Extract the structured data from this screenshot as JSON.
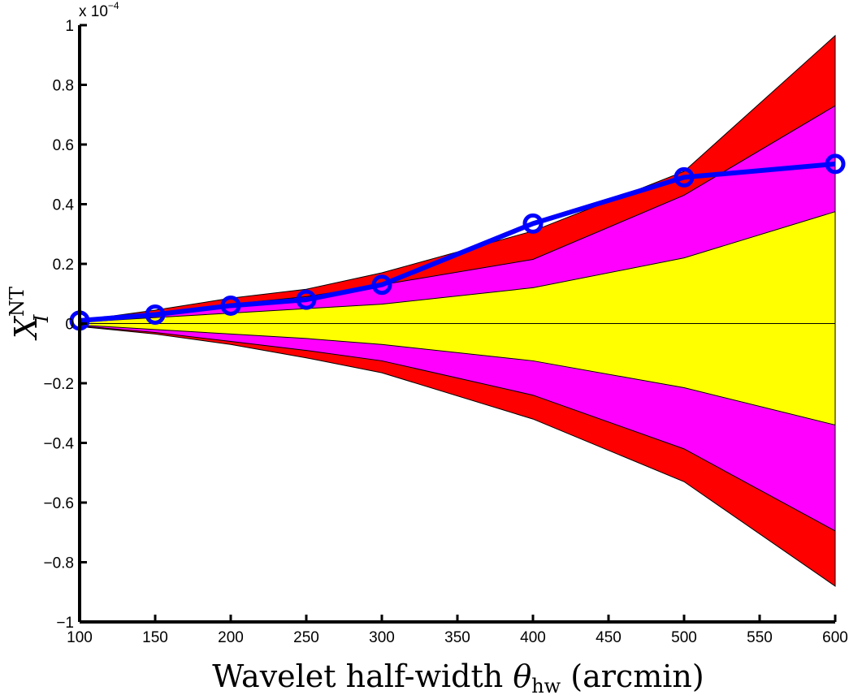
{
  "chart_data": {
    "type": "area",
    "x": [
      100,
      150,
      200,
      250,
      300,
      400,
      500,
      600
    ],
    "bands": [
      {
        "fill": "#ff0000",
        "upper": [
          0.01,
          0.045,
          0.085,
          0.115,
          0.17,
          0.31,
          0.51,
          0.965
        ],
        "lower": [
          -0.01,
          -0.035,
          -0.07,
          -0.115,
          -0.165,
          -0.32,
          -0.53,
          -0.88
        ]
      },
      {
        "fill": "#ff00ff",
        "upper": [
          0.008,
          0.035,
          0.065,
          0.09,
          0.13,
          0.215,
          0.43,
          0.73
        ],
        "lower": [
          -0.008,
          -0.03,
          -0.06,
          -0.09,
          -0.125,
          -0.24,
          -0.42,
          -0.695
        ]
      },
      {
        "fill": "#ffff00",
        "upper": [
          0.005,
          0.02,
          0.035,
          0.05,
          0.065,
          0.12,
          0.22,
          0.375
        ],
        "lower": [
          -0.005,
          -0.02,
          -0.035,
          -0.05,
          -0.07,
          -0.125,
          -0.215,
          -0.34
        ]
      }
    ],
    "series": [
      {
        "color": "#0000ff",
        "marker": "circle",
        "values": [
          0.01,
          0.03,
          0.06,
          0.08,
          0.13,
          0.335,
          0.49,
          0.535
        ]
      }
    ],
    "xlim": [
      100,
      600
    ],
    "ylim": [
      -1,
      1
    ],
    "xticks": [
      "100",
      "150",
      "200",
      "250",
      "300",
      "350",
      "400",
      "450",
      "500",
      "550",
      "600"
    ],
    "yticks": [
      "−1",
      "−0.8",
      "−0.6",
      "−0.4",
      "−0.2",
      "0",
      "0.2",
      "0.4",
      "0.6",
      "0.8",
      "1"
    ],
    "y_multiplier": "x 10",
    "y_multiplier_exp": "−4",
    "xlabel": {
      "prefix": "Wavelet half-width ",
      "symbol": "θ",
      "subscript": "hw",
      "suffix": " (arcmin)"
    },
    "ylabel": {
      "symbol": "X",
      "superscript": "NT",
      "subscript": "I"
    },
    "grid": false,
    "legend": "none"
  }
}
